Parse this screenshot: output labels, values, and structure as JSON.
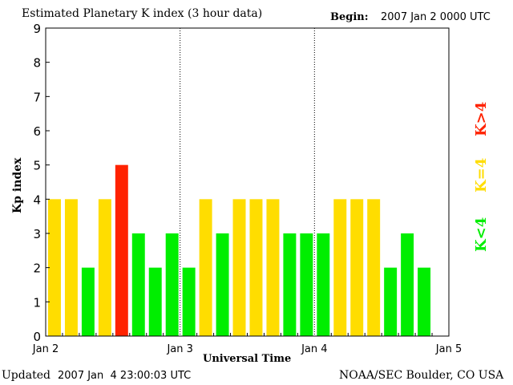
{
  "chart_data": {
    "type": "bar",
    "title": "Estimated Planetary K index (3 hour data)",
    "begin_label": "Begin:",
    "begin_value": "2007 Jan 2 0000 UTC",
    "xlabel": "Universal Time",
    "ylabel": "Kp index",
    "ylim": [
      0,
      9
    ],
    "yticks": [
      "0",
      "1",
      "2",
      "3",
      "4",
      "5",
      "6",
      "7",
      "8",
      "9"
    ],
    "xticks": [
      "Jan 2",
      "Jan 3",
      "Jan 4",
      "Jan 5"
    ],
    "bars_per_day": 8,
    "values": [
      4,
      4,
      2,
      4,
      5,
      3,
      2,
      3,
      2,
      4,
      3,
      4,
      4,
      4,
      3,
      3,
      3,
      4,
      4,
      4,
      2,
      3,
      2
    ],
    "colors": {
      "low": "#00ee00",
      "equal": "#ffdd00",
      "high": "#ff2200"
    },
    "legend": [
      {
        "label": "K>4",
        "color": "#ff2200"
      },
      {
        "label": "K=4",
        "color": "#ffdd00"
      },
      {
        "label": "K<4",
        "color": "#00ee00"
      }
    ]
  },
  "footer": {
    "updated_label": "Updated",
    "updated_value": "2007 Jan  4 23:00:03 UTC",
    "source": "NOAA/SEC Boulder, CO USA"
  }
}
